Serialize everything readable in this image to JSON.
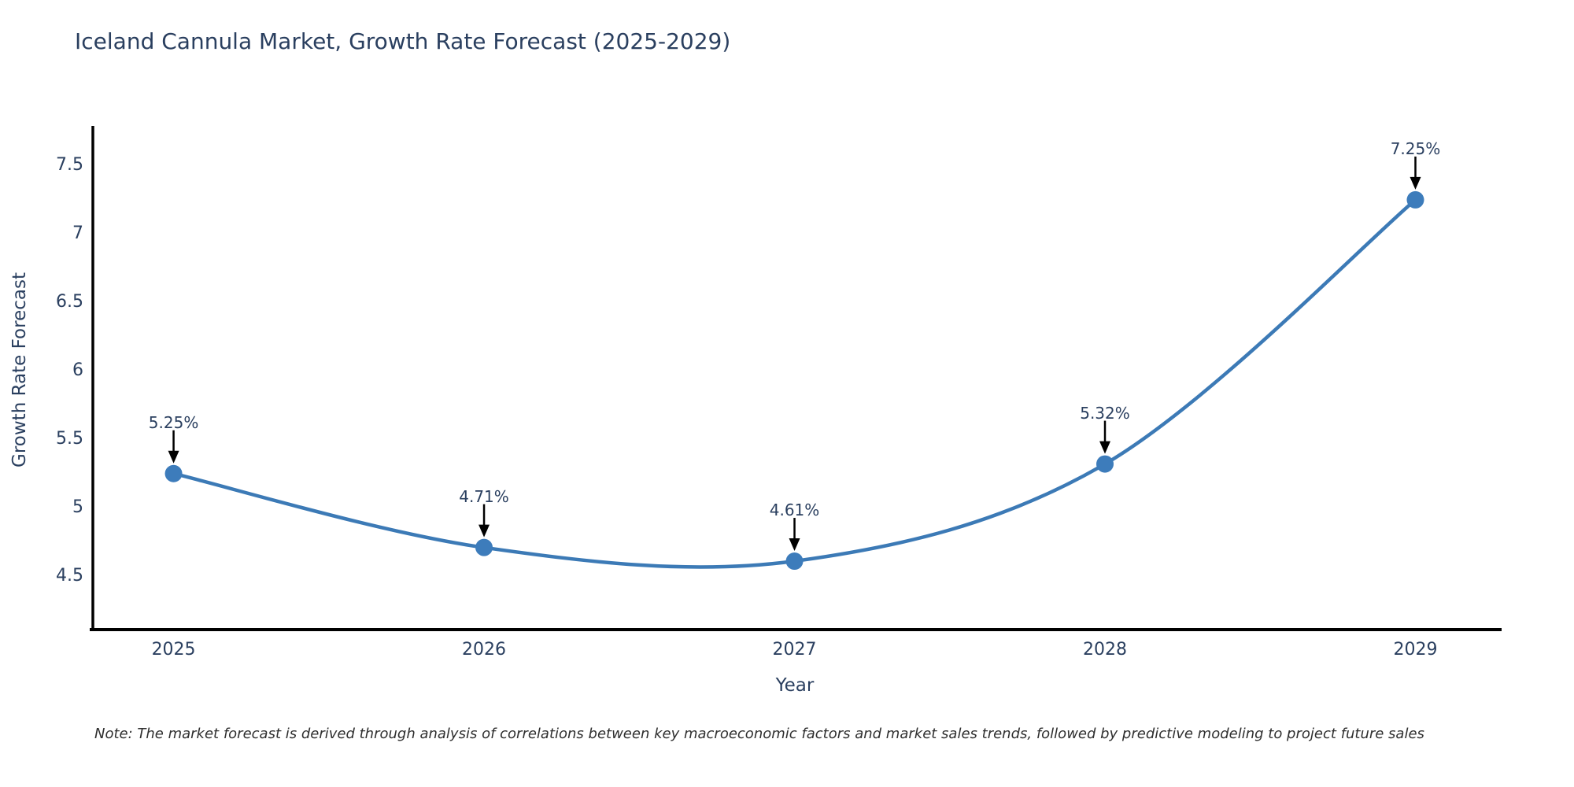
{
  "header": {
    "title": "Iceland Cannula Market, Growth Rate Forecast (2025-2029)"
  },
  "footer": {
    "note": "Note: The market forecast is derived through analysis of correlations between key macroeconomic factors and market sales trends, followed by predictive modeling to project future sales"
  },
  "chart_data": {
    "type": "line",
    "line_shape": "spline",
    "title": "Iceland Cannula Market, Growth Rate Forecast (2025-2029)",
    "xlabel": "Year",
    "ylabel": "Growth Rate Forecast",
    "x": [
      2025,
      2026,
      2027,
      2028,
      2029
    ],
    "values": [
      5.25,
      4.71,
      4.61,
      5.32,
      7.25
    ],
    "point_labels": [
      "5.25%",
      "4.71%",
      "4.61%",
      "5.32%",
      "7.25%"
    ],
    "xtick_labels": [
      "2025",
      "2026",
      "2027",
      "2028",
      "2029"
    ],
    "yticks": [
      4.5,
      5,
      5.5,
      6,
      6.5,
      7,
      7.5
    ],
    "ytick_labels": [
      "4.5",
      "5",
      "5.5",
      "6",
      "6.5",
      "7",
      "7.5"
    ],
    "xlim": [
      2024.74,
      2029.27
    ],
    "ylim": [
      4.11,
      7.79
    ],
    "grid": false,
    "legend": false,
    "markers": true,
    "annotation_style": "label-with-down-arrow",
    "colors": {
      "line": "#3c7ab6",
      "marker": "#3d7cbb",
      "axis": "#000000",
      "tick_text": "#2a3f5f",
      "title_text": "#2a3f5f",
      "annotation_text": "#2a3f5f",
      "arrow": "#000000",
      "note_text": "#2f2f2f",
      "background": "#ffffff"
    }
  }
}
